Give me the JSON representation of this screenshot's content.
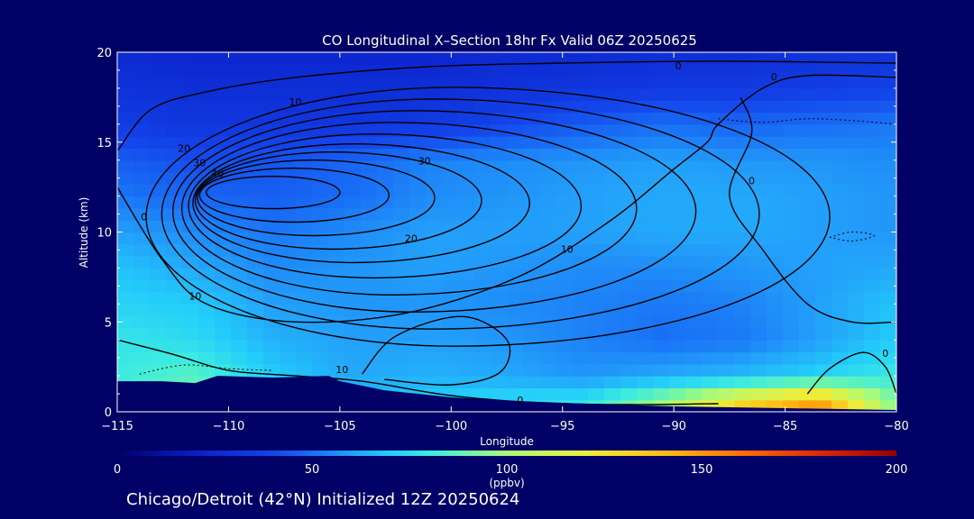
{
  "chart_data": {
    "type": "heatmap",
    "title": "CO Longitudinal X–Section 18hr  Fx Valid 06Z 20250625",
    "xlabel": "Longitude",
    "ylabel": "Altitude (km)",
    "xlim": [
      -115,
      -80
    ],
    "ylim": [
      0,
      20
    ],
    "x_ticks": [
      -115,
      -110,
      -105,
      -100,
      -95,
      -90,
      -85,
      -80
    ],
    "x_tick_labels": [
      "−115",
      "−110",
      "−105",
      "−100",
      "−95",
      "−90",
      "−85",
      "−80"
    ],
    "y_ticks": [
      0,
      5,
      10,
      15,
      20
    ],
    "y_tick_labels": [
      "0",
      "5",
      "10",
      "15",
      "20"
    ],
    "colorbar": {
      "min": 0,
      "max": 200,
      "ticks": [
        0,
        50,
        100,
        150,
        200
      ],
      "tick_labels": [
        "0",
        "50",
        "100",
        "150",
        "200"
      ],
      "units": "(ppbv)"
    },
    "fill_field": {
      "x": [
        -115,
        -111.5,
        -108,
        -104.5,
        -101,
        -97.5,
        -94,
        -90.5,
        -87,
        -83.5,
        -80
      ],
      "y": [
        0.5,
        2,
        4,
        6,
        8,
        10,
        12,
        14,
        16,
        18,
        20
      ],
      "z": [
        [
          82,
          90,
          72,
          66,
          70,
          75,
          78,
          100,
          130,
          150,
          92
        ],
        [
          80,
          86,
          70,
          62,
          64,
          62,
          58,
          62,
          66,
          72,
          80
        ],
        [
          78,
          74,
          64,
          60,
          60,
          58,
          54,
          50,
          52,
          60,
          70
        ],
        [
          72,
          70,
          60,
          58,
          58,
          56,
          54,
          52,
          54,
          60,
          68
        ],
        [
          68,
          62,
          56,
          58,
          60,
          58,
          56,
          56,
          58,
          60,
          62
        ],
        [
          60,
          56,
          52,
          56,
          60,
          60,
          60,
          62,
          62,
          60,
          58
        ],
        [
          52,
          48,
          46,
          50,
          56,
          58,
          60,
          62,
          62,
          60,
          58
        ],
        [
          46,
          42,
          44,
          48,
          54,
          56,
          58,
          60,
          58,
          58,
          56
        ],
        [
          36,
          32,
          32,
          32,
          34,
          40,
          46,
          50,
          48,
          50,
          52
        ],
        [
          30,
          28,
          28,
          28,
          28,
          30,
          32,
          34,
          34,
          36,
          38
        ],
        [
          26,
          24,
          24,
          24,
          24,
          26,
          26,
          28,
          28,
          30,
          30
        ]
      ]
    },
    "contour_labels": [
      "10",
      "10",
      "20",
      "30",
      "40",
      "30",
      "20",
      "10",
      "0",
      "0",
      "0",
      "10",
      "0",
      "0",
      "0"
    ],
    "terrain": true
  },
  "footer": {
    "location_text": "Chicago/Detroit (42°N) Initialized 12Z 20250624"
  }
}
